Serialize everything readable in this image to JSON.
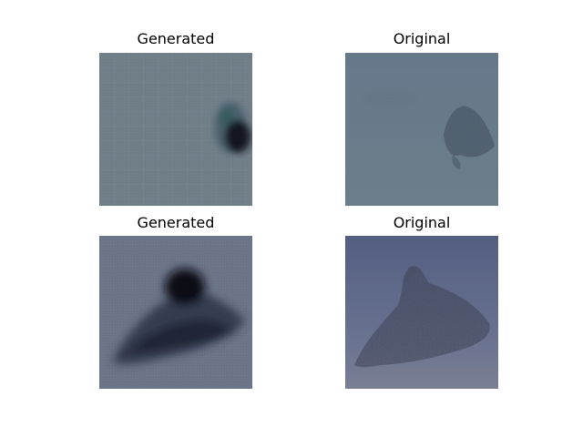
{
  "figure": {
    "panels": [
      {
        "title": "Generated",
        "image": "generated-starling-flock-1"
      },
      {
        "title": "Original",
        "image": "original-starling-flock-1"
      },
      {
        "title": "Generated",
        "image": "generated-starling-flock-2"
      },
      {
        "title": "Original",
        "image": "original-starling-flock-2"
      }
    ]
  }
}
